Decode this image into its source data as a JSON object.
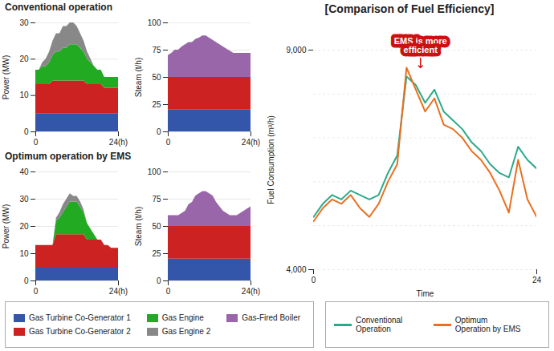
{
  "chart_data": [
    {
      "type": "area",
      "stacked": true,
      "title": "Conventional operation",
      "x": [
        0,
        1,
        2,
        3,
        4,
        5,
        6,
        7,
        8,
        9,
        10,
        11,
        12,
        13,
        14,
        15,
        16,
        17,
        18,
        19,
        20,
        21,
        22,
        23,
        24
      ],
      "xlim": [
        0,
        24
      ],
      "xticks": [
        0,
        {
          "value": 24,
          "label": "24(h)"
        }
      ],
      "ylim": [
        0,
        30
      ],
      "yticks": [
        0,
        10,
        20,
        30
      ],
      "ylabel": "Power (MW)",
      "grid": true,
      "legend": "bottom",
      "series": [
        {
          "name": "Gas Turbine Co-Generator 1",
          "color": "#3355aa",
          "values": [
            5,
            5,
            5,
            5,
            5,
            5,
            5,
            5,
            5,
            5,
            5,
            5,
            5,
            5,
            5,
            5,
            5,
            5,
            5,
            5,
            5,
            5,
            5,
            5,
            5
          ]
        },
        {
          "name": "Gas Turbine Co-Generator 2",
          "color": "#cc2222",
          "values": [
            8,
            8,
            8,
            8,
            8,
            9,
            9,
            9,
            9,
            9,
            9,
            9,
            9,
            9,
            9,
            8,
            8,
            8,
            8,
            8,
            7,
            7,
            7,
            7,
            7
          ]
        },
        {
          "name": "Gas Engine",
          "color": "#22aa22",
          "values": [
            4,
            4,
            5,
            5,
            6,
            7,
            8,
            8,
            9,
            9,
            10,
            10,
            10,
            9,
            8,
            7,
            6,
            5,
            4,
            4,
            3,
            3,
            3,
            3,
            3
          ]
        },
        {
          "name": "Gas Engine 2",
          "color": "#888888",
          "values": [
            0,
            0,
            1,
            2,
            3,
            4,
            5,
            5,
            6,
            6,
            6,
            6,
            5,
            4,
            3,
            2,
            1,
            0,
            0,
            0,
            0,
            0,
            0,
            0,
            0
          ]
        }
      ]
    },
    {
      "type": "area",
      "stacked": true,
      "x": [
        0,
        1,
        2,
        3,
        4,
        5,
        6,
        7,
        8,
        9,
        10,
        11,
        12,
        13,
        14,
        15,
        16,
        17,
        18,
        19,
        20,
        21,
        22,
        23,
        24
      ],
      "xlim": [
        0,
        24
      ],
      "xticks": [
        0,
        {
          "value": 24,
          "label": "24(h)"
        }
      ],
      "ylim": [
        0,
        100
      ],
      "yticks": [
        0,
        25,
        50,
        75,
        100
      ],
      "ylabel": "Steam (t/h)",
      "grid": true,
      "legend": "bottom",
      "series": [
        {
          "name": "Gas Turbine Co-Generator 1",
          "color": "#3355aa",
          "values": [
            20,
            20,
            20,
            20,
            20,
            20,
            20,
            20,
            20,
            20,
            20,
            20,
            20,
            20,
            20,
            20,
            20,
            20,
            20,
            20,
            20,
            20,
            20,
            20,
            20
          ]
        },
        {
          "name": "Gas Turbine Co-Generator 2",
          "color": "#cc2222",
          "values": [
            30,
            30,
            30,
            30,
            30,
            30,
            30,
            30,
            30,
            30,
            30,
            30,
            30,
            30,
            30,
            30,
            30,
            30,
            30,
            30,
            30,
            30,
            30,
            30,
            30
          ]
        },
        {
          "name": "Gas-Fired Boiler",
          "color": "#9966aa",
          "values": [
            20,
            22,
            25,
            25,
            28,
            30,
            32,
            32,
            35,
            36,
            38,
            38,
            36,
            34,
            32,
            30,
            28,
            26,
            24,
            22,
            22,
            22,
            22,
            22,
            22
          ]
        }
      ]
    },
    {
      "type": "area",
      "stacked": true,
      "title": "Optimum operation by EMS",
      "x": [
        0,
        1,
        2,
        3,
        4,
        5,
        6,
        7,
        8,
        9,
        10,
        11,
        12,
        13,
        14,
        15,
        16,
        17,
        18,
        19,
        20,
        21,
        22,
        23,
        24
      ],
      "xlim": [
        0,
        24
      ],
      "xticks": [
        0,
        {
          "value": 24,
          "label": "24(h)"
        }
      ],
      "ylim": [
        0,
        40
      ],
      "yticks": [
        0,
        10,
        20,
        30,
        40
      ],
      "ylabel": "Power (MW)",
      "grid": true,
      "legend": "bottom",
      "series": [
        {
          "name": "Gas Turbine Co-Generator 1",
          "color": "#3355aa",
          "values": [
            5,
            5,
            5,
            5,
            5,
            5,
            5,
            5,
            5,
            5,
            5,
            5,
            5,
            5,
            5,
            5,
            5,
            5,
            5,
            5,
            5,
            5,
            5,
            5,
            5
          ]
        },
        {
          "name": "Gas Turbine Co-Generator 2",
          "color": "#cc2222",
          "values": [
            8,
            8,
            8,
            8,
            8,
            8,
            12,
            12,
            12,
            12,
            12,
            12,
            12,
            12,
            12,
            10,
            10,
            10,
            10,
            10,
            8,
            8,
            7,
            7,
            7
          ]
        },
        {
          "name": "Gas Engine",
          "color": "#22aa22",
          "values": [
            0,
            0,
            0,
            0,
            0,
            0,
            5,
            6,
            8,
            10,
            12,
            12,
            12,
            10,
            8,
            6,
            4,
            2,
            0,
            0,
            0,
            0,
            0,
            0,
            0
          ]
        },
        {
          "name": "Gas Engine 2",
          "color": "#888888",
          "values": [
            0,
            0,
            0,
            0,
            0,
            0,
            1,
            2,
            3,
            3,
            3,
            2,
            2,
            2,
            1,
            0,
            0,
            0,
            0,
            0,
            0,
            0,
            0,
            0,
            0
          ]
        }
      ]
    },
    {
      "type": "area",
      "stacked": true,
      "x": [
        0,
        1,
        2,
        3,
        4,
        5,
        6,
        7,
        8,
        9,
        10,
        11,
        12,
        13,
        14,
        15,
        16,
        17,
        18,
        19,
        20,
        21,
        22,
        23,
        24
      ],
      "xlim": [
        0,
        24
      ],
      "xticks": [
        0,
        {
          "value": 24,
          "label": "24(h)"
        }
      ],
      "ylim": [
        0,
        100
      ],
      "yticks": [
        0,
        25,
        50,
        75,
        100
      ],
      "ylabel": "Steam (t/h)",
      "grid": true,
      "legend": "bottom",
      "series": [
        {
          "name": "Gas Turbine Co-Generator 1",
          "color": "#3355aa",
          "values": [
            20,
            20,
            20,
            20,
            20,
            20,
            20,
            20,
            20,
            20,
            20,
            20,
            20,
            20,
            20,
            20,
            20,
            20,
            20,
            20,
            20,
            20,
            20,
            20,
            20
          ]
        },
        {
          "name": "Gas Turbine Co-Generator 2",
          "color": "#cc2222",
          "values": [
            30,
            30,
            30,
            30,
            30,
            30,
            30,
            30,
            30,
            30,
            30,
            30,
            30,
            30,
            30,
            30,
            30,
            30,
            30,
            30,
            30,
            30,
            30,
            30,
            30
          ]
        },
        {
          "name": "Gas-Fired Boiler",
          "color": "#9966aa",
          "values": [
            10,
            10,
            10,
            10,
            12,
            14,
            20,
            22,
            28,
            30,
            32,
            32,
            30,
            28,
            22,
            18,
            14,
            12,
            10,
            10,
            10,
            12,
            14,
            16,
            18
          ]
        }
      ]
    },
    {
      "type": "line",
      "title": "[Comparison of Fuel Efficiency]",
      "x": [
        0,
        1,
        2,
        3,
        4,
        5,
        6,
        7,
        8,
        9,
        10,
        11,
        12,
        13,
        14,
        15,
        16,
        17,
        18,
        19,
        20,
        21,
        22,
        23,
        24
      ],
      "xlim": [
        0,
        24
      ],
      "xticks": [
        0,
        24
      ],
      "xlabel": "Time",
      "ylim": [
        4000,
        9000
      ],
      "yticks": [
        {
          "value": 4000,
          "label": "4,000"
        },
        {
          "value": 9000,
          "label": "9,000"
        }
      ],
      "ylabel": "Fuel Consumption (m³/h)",
      "grid": true,
      "legend": "bottom",
      "series": [
        {
          "name": "Conventional\nOperation",
          "color": "#2aaa8a",
          "values": [
            5200,
            5500,
            5700,
            5600,
            5800,
            5700,
            5600,
            5700,
            6200,
            6600,
            8400,
            8200,
            7800,
            8100,
            7600,
            7400,
            7200,
            6900,
            6700,
            6400,
            6200,
            6100,
            6800,
            6500,
            6300
          ]
        },
        {
          "name": "Optimum\nOperation by EMS",
          "color": "#e87020",
          "values": [
            5100,
            5400,
            5600,
            5500,
            5700,
            5400,
            5200,
            5500,
            6000,
            6400,
            8600,
            8100,
            7600,
            7900,
            7300,
            7200,
            7000,
            6700,
            6500,
            6200,
            5800,
            5300,
            6500,
            5600,
            5200
          ]
        }
      ],
      "annotations": [
        {
          "text": "EMS is more\nefficient",
          "x": 11.5,
          "y": 8600,
          "color": "#cc1111"
        }
      ]
    }
  ]
}
